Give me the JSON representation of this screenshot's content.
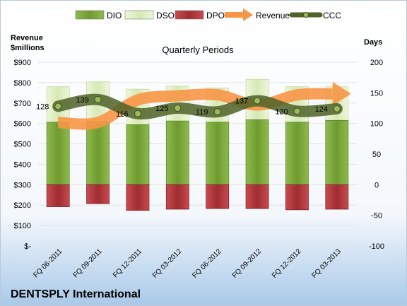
{
  "chart_data": {
    "type": "bar",
    "title": "Quarterly Periods",
    "company": "DENTSPLY International",
    "ylabel_left": "Revenue\n$millions",
    "ylabel_right": "Days",
    "categories": [
      "FQ 06-2011",
      "FQ 09-2011",
      "FQ 12-2011",
      "FQ 03-2012",
      "FQ 06-2012",
      "FQ 09-2012",
      "FQ 12-2012",
      "FQ 03-2013"
    ],
    "left_axis": {
      "min": 0,
      "max": 900,
      "step": 100,
      "tick_labels": [
        "$-",
        "$100",
        "$200",
        "$300",
        "$400",
        "$500",
        "$600",
        "$700",
        "$800",
        "$900"
      ]
    },
    "right_axis": {
      "min": -100,
      "max": 200,
      "step": 50,
      "tick_labels": [
        "-100",
        "-50",
        "0",
        "50",
        "100",
        "150",
        "200"
      ]
    },
    "series": [
      {
        "name": "DIO",
        "kind": "bar",
        "axis": "right",
        "color": "#7aa53a",
        "values": [
          102,
          103,
          98,
          104,
          102,
          106,
          102,
          105
        ]
      },
      {
        "name": "DSO",
        "kind": "bar",
        "axis": "right",
        "color": "#dfeec0",
        "values": [
          58,
          65,
          58,
          57,
          56,
          66,
          58,
          55
        ]
      },
      {
        "name": "DPO",
        "kind": "bar",
        "axis": "right",
        "color": "#b5383c",
        "values": [
          -36,
          -31,
          -42,
          -40,
          -39,
          -39,
          -41,
          -40
        ]
      },
      {
        "name": "Revenue",
        "kind": "arrow-line",
        "axis": "left",
        "color": "#f79646",
        "values": [
          605,
          605,
          715,
          735,
          740,
          690,
          740,
          745
        ]
      },
      {
        "name": "CCC",
        "kind": "line",
        "axis": "right",
        "color": "#4f6228",
        "values": [
          128,
          139,
          116,
          125,
          119,
          137,
          120,
          124
        ],
        "data_labels": [
          "128",
          "139",
          "116",
          "125",
          "119",
          "137",
          "120",
          "124"
        ]
      }
    ]
  }
}
